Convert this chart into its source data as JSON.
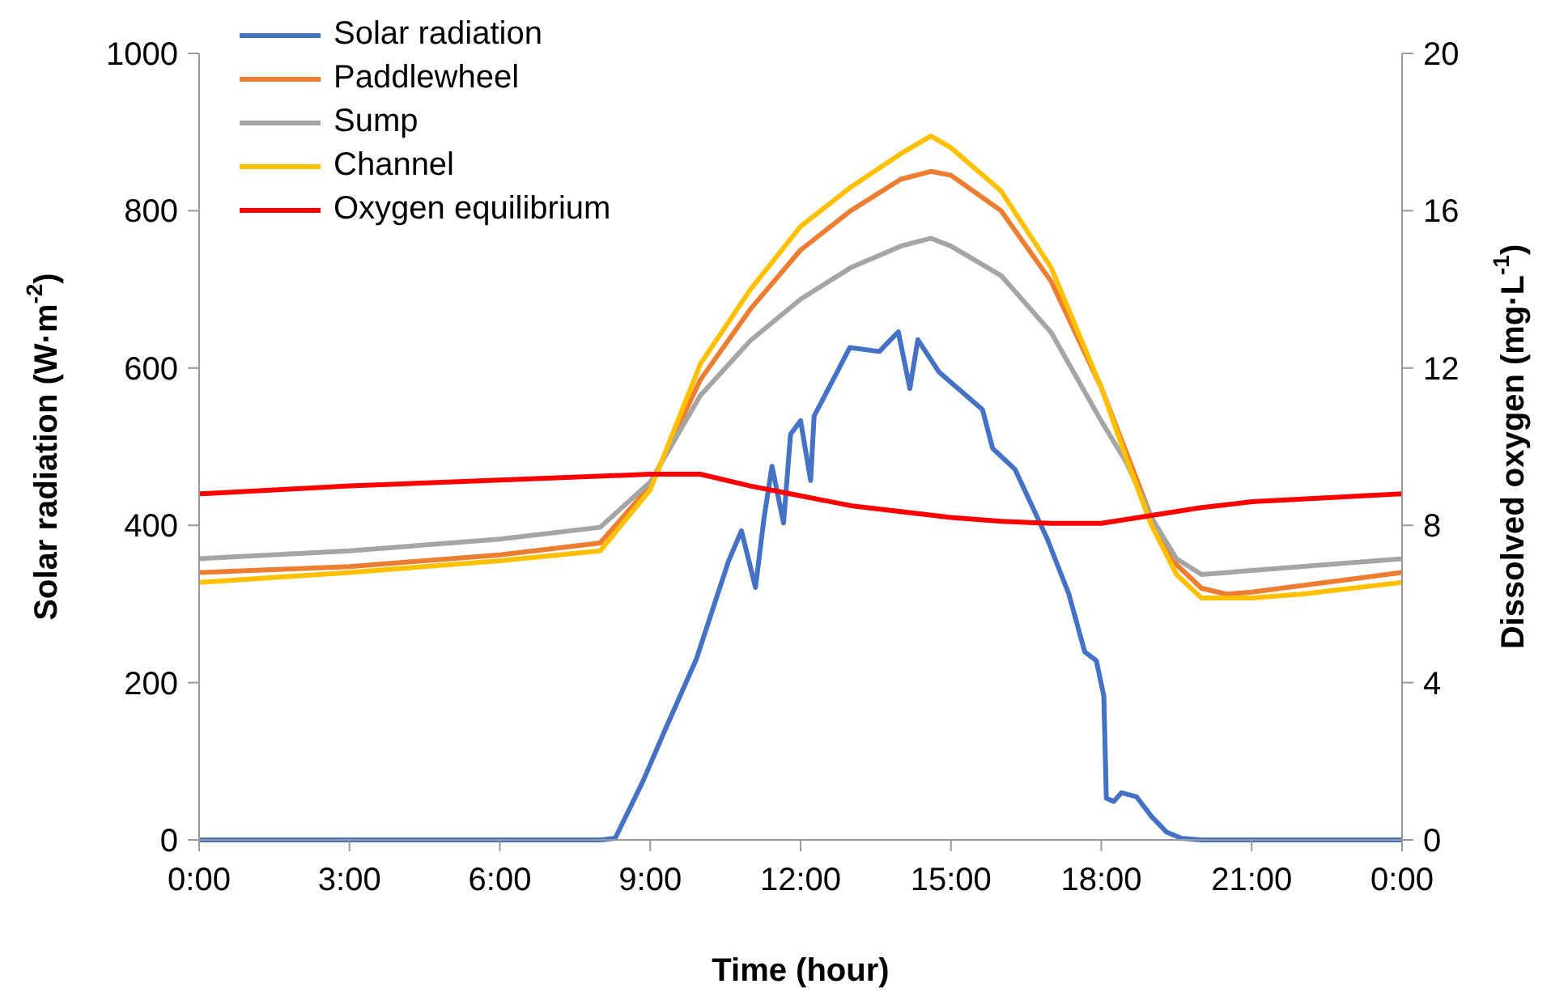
{
  "chart_data": {
    "type": "line",
    "xlabel": "Time (hour)",
    "ylabel": "Solar radiation (W·m$^{-2}$)",
    "y2label": "Dissolved oxygen (mg·L$^{-1}$)",
    "xlim": [
      0,
      24
    ],
    "xticks": [
      {
        "value": 0,
        "label": "0:00"
      },
      {
        "value": 3,
        "label": "3:00"
      },
      {
        "value": 6,
        "label": "6:00"
      },
      {
        "value": 9,
        "label": "9:00"
      },
      {
        "value": 12,
        "label": "12:00"
      },
      {
        "value": 15,
        "label": "15:00"
      },
      {
        "value": 18,
        "label": "18:00"
      },
      {
        "value": 21,
        "label": "21:00"
      },
      {
        "value": 24,
        "label": "0:00"
      }
    ],
    "ylim": [
      0,
      1000
    ],
    "yticks": [
      0,
      200,
      400,
      600,
      800,
      1000
    ],
    "y2lim": [
      0,
      20
    ],
    "y2ticks": [
      0,
      4,
      8,
      12,
      16,
      20
    ],
    "grid": false,
    "legend": "top left",
    "marker": "none",
    "line_style": "solid",
    "series": [
      {
        "name": "Solar radiation",
        "color": "#4472c4",
        "x": [
          0,
          2,
          4,
          6,
          8,
          8.3,
          8.85,
          9.27,
          9.92,
          10.56,
          10.82,
          11.1,
          11.27,
          11.43,
          11.66,
          11.8,
          12,
          12.2,
          12.27,
          12.73,
          12.98,
          13.57,
          13.95,
          14.18,
          14.34,
          14.76,
          15.63,
          15.83,
          16.28,
          16.92,
          17.35,
          17.67,
          17.9,
          18.05,
          18.1,
          18.25,
          18.4,
          18.7,
          19,
          19.3,
          19.6,
          20,
          22,
          24
        ],
        "values": [
          0,
          0,
          0,
          0,
          0,
          2,
          74,
          136,
          230,
          354,
          393,
          321,
          409,
          475,
          403,
          516,
          533,
          457,
          539,
          595,
          626,
          621,
          646,
          574,
          636,
          595,
          547,
          498,
          471,
          383,
          313,
          239,
          228,
          183,
          53,
          49,
          60,
          55,
          30,
          10,
          2,
          0,
          0,
          0
        ]
      },
      {
        "name": "Paddlewheel",
        "color": "#ed7d31",
        "axis": "y2",
        "x": [
          0,
          3,
          6,
          8,
          9,
          10,
          11,
          12,
          13,
          14,
          14.6,
          15,
          16,
          17,
          18,
          18.5,
          19,
          19.5,
          20,
          20.5,
          21,
          24
        ],
        "values": [
          6.8,
          6.95,
          7.25,
          7.55,
          9.0,
          11.7,
          13.5,
          15.0,
          16.0,
          16.8,
          17.0,
          16.9,
          16.0,
          14.2,
          11.5,
          9.85,
          8.2,
          7.0,
          6.4,
          6.25,
          6.3,
          6.8
        ]
      },
      {
        "name": "Sump",
        "color": "#a5a5a5",
        "axis": "y2",
        "x": [
          0,
          3,
          6,
          8,
          9,
          10,
          11,
          12,
          13,
          14,
          14.6,
          15,
          16,
          17,
          18,
          18.5,
          19,
          19.5,
          20,
          21,
          24
        ],
        "values": [
          7.15,
          7.35,
          7.65,
          7.95,
          9.1,
          11.3,
          12.7,
          13.75,
          14.55,
          15.1,
          15.3,
          15.1,
          14.35,
          12.9,
          10.65,
          9.6,
          8.2,
          7.15,
          6.75,
          6.85,
          7.15
        ]
      },
      {
        "name": "Channel",
        "color": "#ffc000",
        "axis": "y2",
        "x": [
          0,
          3,
          6,
          8,
          9,
          10,
          11,
          12,
          13,
          14,
          14.6,
          15,
          16,
          17,
          18,
          18.5,
          19,
          19.5,
          20,
          21,
          22,
          24
        ],
        "values": [
          6.55,
          6.8,
          7.1,
          7.35,
          8.9,
          12.1,
          14.0,
          15.6,
          16.6,
          17.45,
          17.9,
          17.6,
          16.5,
          14.55,
          11.5,
          9.7,
          8.0,
          6.75,
          6.15,
          6.15,
          6.25,
          6.55
        ]
      },
      {
        "name": "Oxygen equilibrium",
        "color": "#ff0000",
        "axis": "y2",
        "x": [
          0,
          3,
          6,
          9,
          10,
          11,
          12,
          13,
          14,
          15,
          16,
          17,
          18,
          19,
          20,
          21,
          24
        ],
        "values": [
          8.8,
          9.0,
          9.15,
          9.3,
          9.3,
          9.0,
          8.75,
          8.5,
          8.35,
          8.2,
          8.1,
          8.05,
          8.05,
          8.25,
          8.45,
          8.6,
          8.8
        ]
      }
    ]
  }
}
